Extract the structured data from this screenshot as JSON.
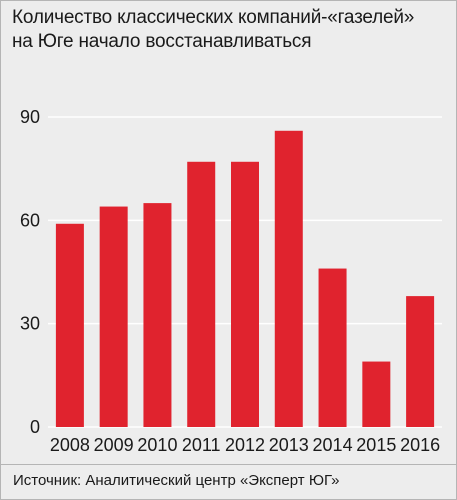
{
  "title_lines": [
    "Количество классических компаний-«газелей»",
    "на Юге начало восстанавливаться"
  ],
  "source": "Источник: Аналитический центр «Эксперт ЮГ»",
  "colors": {
    "bar": "#e0232e",
    "grid": "#ffffff",
    "background": "#ededed",
    "text": "#1a1a1a"
  },
  "chart_data": {
    "type": "bar",
    "categories": [
      "2008",
      "2009",
      "2010",
      "2011",
      "2012",
      "2013",
      "2014",
      "2015",
      "2016"
    ],
    "values": [
      59,
      64,
      65,
      77,
      77,
      86,
      46,
      19,
      38
    ],
    "ylim": [
      0,
      90
    ],
    "yticks": [
      0,
      30,
      60,
      90
    ],
    "grid": true,
    "legend": "none"
  }
}
